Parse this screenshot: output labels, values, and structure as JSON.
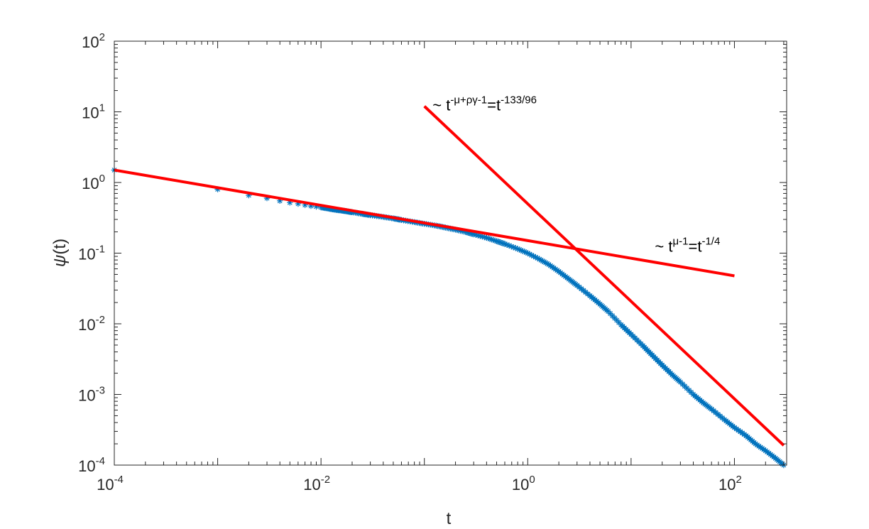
{
  "chart_data": {
    "type": "scatter",
    "xscale": "log",
    "yscale": "log",
    "xlim": [
      0.0001,
      320
    ],
    "ylim": [
      0.0001,
      100
    ],
    "xlabel": "t",
    "ylabel_prefix": "ψ",
    "ylabel_suffix": "(t)",
    "xticks": [
      {
        "value": 0.0001,
        "base": "10",
        "exp": "-4"
      },
      {
        "value": 0.01,
        "base": "10",
        "exp": "-2"
      },
      {
        "value": 1,
        "base": "10",
        "exp": "0"
      },
      {
        "value": 100,
        "base": "10",
        "exp": "2"
      }
    ],
    "yticks": [
      {
        "value": 0.0001,
        "base": "10",
        "exp": "-4"
      },
      {
        "value": 0.001,
        "base": "10",
        "exp": "-3"
      },
      {
        "value": 0.01,
        "base": "10",
        "exp": "-2"
      },
      {
        "value": 0.1,
        "base": "10",
        "exp": "-1"
      },
      {
        "value": 1,
        "base": "10",
        "exp": "0"
      },
      {
        "value": 10,
        "base": "10",
        "exp": "1"
      },
      {
        "value": 100,
        "base": "10",
        "exp": "2"
      }
    ],
    "grid": false,
    "series": [
      {
        "marker": "asterisk",
        "color": "#0072BD",
        "x": [
          0.0001,
          0.001,
          0.002,
          0.003,
          0.004,
          0.005,
          0.006,
          0.007,
          0.008,
          0.009,
          0.01,
          0.012,
          0.014,
          0.016,
          0.018,
          0.02,
          0.025,
          0.03,
          0.04,
          0.05,
          0.06,
          0.08,
          0.1,
          0.13,
          0.16,
          0.2,
          0.25,
          0.3,
          0.4,
          0.5,
          0.6,
          0.8,
          1,
          1.3,
          1.6,
          2,
          2.5,
          3,
          4,
          5,
          6,
          8,
          10,
          13,
          16,
          20,
          25,
          30,
          40,
          50,
          60,
          80,
          100,
          130,
          160,
          200,
          250,
          300
        ],
        "y": [
          1.5,
          0.8,
          0.66,
          0.6,
          0.55,
          0.52,
          0.5,
          0.48,
          0.465,
          0.455,
          0.445,
          0.425,
          0.41,
          0.4,
          0.39,
          0.38,
          0.36,
          0.345,
          0.325,
          0.31,
          0.295,
          0.275,
          0.26,
          0.245,
          0.23,
          0.215,
          0.2,
          0.185,
          0.165,
          0.148,
          0.135,
          0.115,
          0.1,
          0.082,
          0.069,
          0.055,
          0.043,
          0.035,
          0.025,
          0.019,
          0.015,
          0.0097,
          0.0071,
          0.0049,
          0.0036,
          0.0026,
          0.0019,
          0.0015,
          0.001,
          0.00076,
          0.00062,
          0.00044,
          0.00034,
          0.00026,
          0.0002,
          0.00016,
          0.000125,
          0.0001
        ]
      }
    ],
    "lines": [
      {
        "color": "#FF0000",
        "x": [
          0.0001,
          100
        ],
        "y": [
          1.5,
          0.0477
        ]
      },
      {
        "color": "#FF0000",
        "x": [
          0.1,
          300
        ],
        "y": [
          12,
          0.00019
        ]
      }
    ],
    "annotations": [
      {
        "prefix": "~ t",
        "sup1": "-μ+ργ-1",
        "mid": "=t",
        "sup2": "-133/96",
        "x": 0.12,
        "y": 10.5
      },
      {
        "prefix": "~ t",
        "sup1": "μ-1",
        "mid": "=t",
        "sup2": "-1/4",
        "x": 17,
        "y": 0.105
      }
    ]
  }
}
